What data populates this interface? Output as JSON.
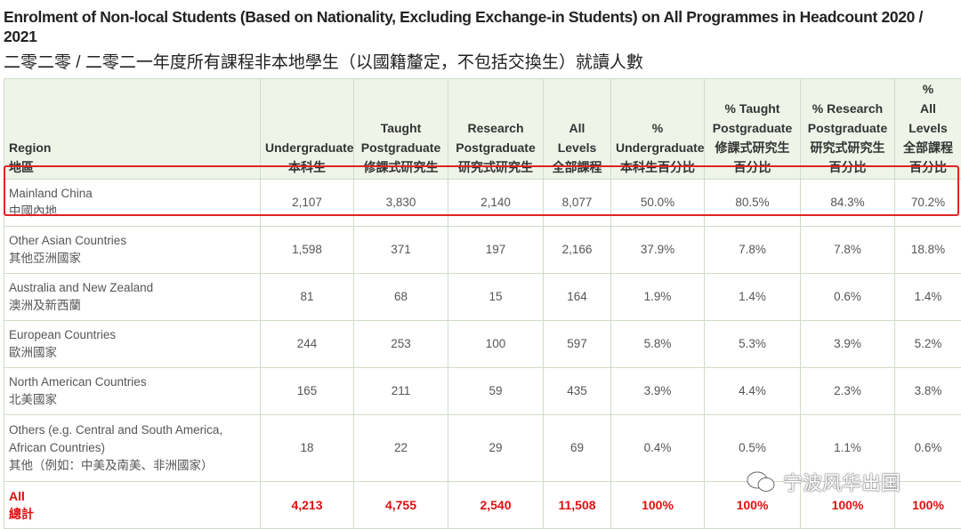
{
  "title": "Enrolment of Non-local Students (Based on Nationality, Excluding Exchange-in Students) on All Programmes in Headcount 2020 / 2021",
  "subtitle": "二零二零 / 二零二一年度所有課程非本地學生（以國籍釐定，不包括交換生）就讀人數",
  "table": {
    "headers": [
      {
        "en": [
          "Region"
        ],
        "zh": [
          "地區"
        ]
      },
      {
        "en": [
          "Undergraduate"
        ],
        "zh": [
          "本科生"
        ]
      },
      {
        "en": [
          "Taught",
          "Postgraduate"
        ],
        "zh": [
          "修課式研究生"
        ]
      },
      {
        "en": [
          "Research",
          "Postgraduate"
        ],
        "zh": [
          "研究式研究生"
        ]
      },
      {
        "en": [
          "All Levels"
        ],
        "zh": [
          "全部課程"
        ]
      },
      {
        "en": [
          "%",
          "Undergraduate"
        ],
        "zh": [
          "本科生百分比"
        ]
      },
      {
        "en": [
          "% Taught",
          "Postgraduate"
        ],
        "zh": [
          "修課式研究生",
          "百分比"
        ]
      },
      {
        "en": [
          "% Research",
          "Postgraduate"
        ],
        "zh": [
          "研究式研究生",
          "百分比"
        ]
      },
      {
        "en": [
          "%",
          "All Levels"
        ],
        "zh": [
          "全部課程",
          "百分比"
        ]
      }
    ],
    "rows": [
      {
        "en": "Mainland China",
        "zh": "中國內地",
        "cells": [
          "2,107",
          "3,830",
          "2,140",
          "8,077",
          "50.0%",
          "80.5%",
          "84.3%",
          "70.2%"
        ]
      },
      {
        "en": "Other Asian Countries",
        "zh": "其他亞洲國家",
        "cells": [
          "1,598",
          "371",
          "197",
          "2,166",
          "37.9%",
          "7.8%",
          "7.8%",
          "18.8%"
        ]
      },
      {
        "en": "Australia and New Zealand",
        "zh": "澳洲及新西蘭",
        "cells": [
          "81",
          "68",
          "15",
          "164",
          "1.9%",
          "1.4%",
          "0.6%",
          "1.4%"
        ]
      },
      {
        "en": "European Countries",
        "zh": "歐洲國家",
        "cells": [
          "244",
          "253",
          "100",
          "597",
          "5.8%",
          "5.3%",
          "3.9%",
          "5.2%"
        ]
      },
      {
        "en": "North American Countries",
        "zh": "北美國家",
        "cells": [
          "165",
          "211",
          "59",
          "435",
          "3.9%",
          "4.4%",
          "2.3%",
          "3.8%"
        ]
      },
      {
        "en": "Others (e.g. Central and South America, African Countries)",
        "zh": "其他（例如：中美及南美、非洲國家）",
        "cells": [
          "18",
          "22",
          "29",
          "69",
          "0.4%",
          "0.5%",
          "1.1%",
          "0.6%"
        ]
      }
    ],
    "total": {
      "en": "All",
      "zh": "總計",
      "cells": [
        "4,213",
        "4,755",
        "2,540",
        "11,508",
        "100%",
        "100%",
        "100%",
        "100%"
      ]
    }
  },
  "watermark": "宁波风华出国"
}
